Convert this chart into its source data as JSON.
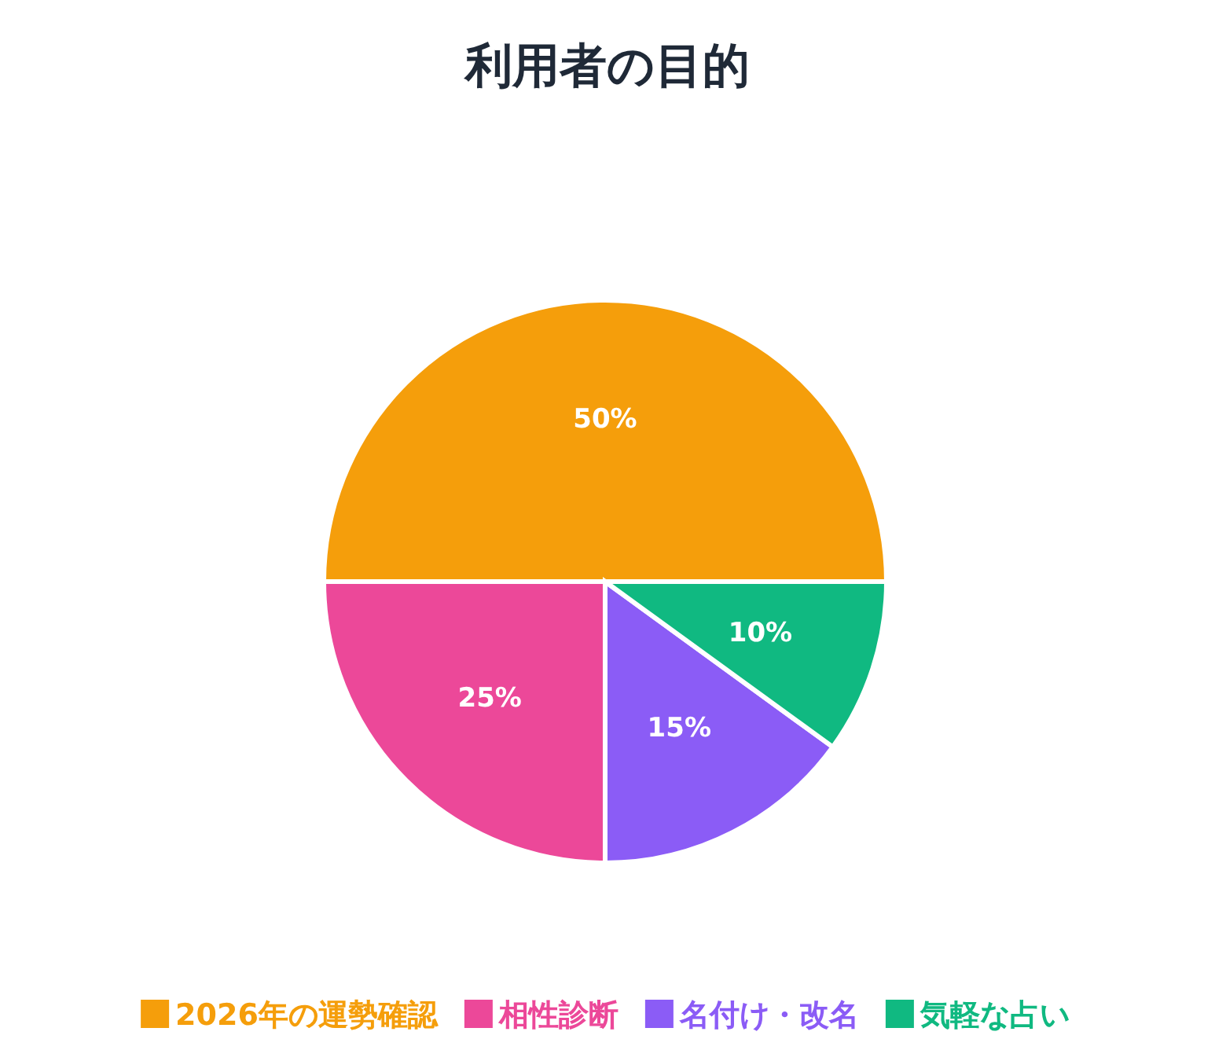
{
  "chart_data": {
    "type": "pie",
    "title": "利用者の目的",
    "categories": [
      "2026年の運勢確認",
      "相性診断",
      "名付け・改名",
      "気軽な占い"
    ],
    "values": [
      50,
      25,
      15,
      10
    ],
    "colors": [
      "#f59e0b",
      "#ec4899",
      "#8b5cf6",
      "#10b981"
    ],
    "value_labels": [
      "50%",
      "25%",
      "15%",
      "10%"
    ],
    "legend": "bottom"
  }
}
